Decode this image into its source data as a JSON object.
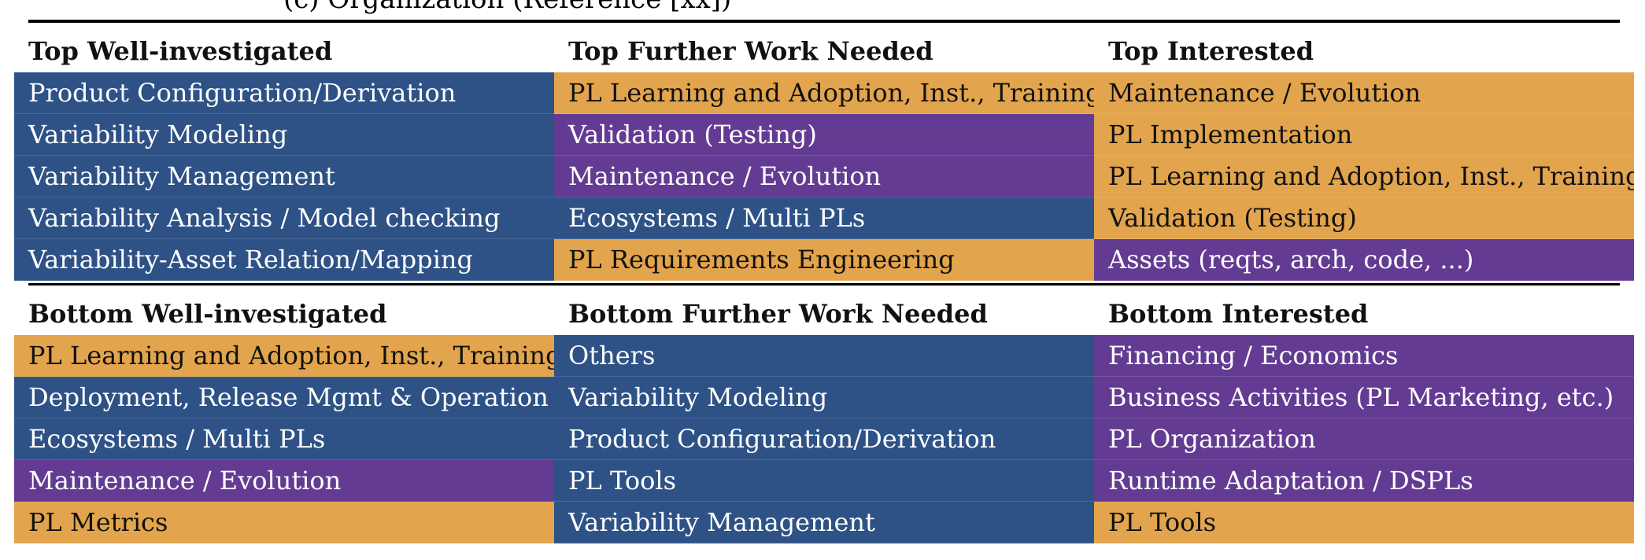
{
  "caption": "(c) Organization (Reference [xx])",
  "top": {
    "headers": [
      "Top Well-investigated",
      "Top Further Work Needed",
      "Top Interested"
    ],
    "rows": [
      [
        {
          "text": "Product Configuration/Derivation",
          "color": "blue"
        },
        {
          "text": "PL Learning and Adoption, Inst., Training",
          "color": "orange"
        },
        {
          "text": "Maintenance / Evolution",
          "color": "orange"
        }
      ],
      [
        {
          "text": "Variability Modeling",
          "color": "blue"
        },
        {
          "text": "Validation (Testing)",
          "color": "purple"
        },
        {
          "text": "PL Implementation",
          "color": "orange"
        }
      ],
      [
        {
          "text": "Variability Management",
          "color": "blue"
        },
        {
          "text": "Maintenance / Evolution",
          "color": "purple"
        },
        {
          "text": "PL Learning and Adoption, Inst., Training",
          "color": "orange"
        }
      ],
      [
        {
          "text": "Variability Analysis / Model checking",
          "color": "blue"
        },
        {
          "text": "Ecosystems / Multi PLs",
          "color": "blue"
        },
        {
          "text": "Validation (Testing)",
          "color": "orange"
        }
      ],
      [
        {
          "text": "Variability-Asset Relation/Mapping",
          "color": "blue"
        },
        {
          "text": "PL Requirements Engineering",
          "color": "orange"
        },
        {
          "text": "Assets (reqts, arch, code, ...)",
          "color": "purple"
        }
      ]
    ]
  },
  "bottom": {
    "headers": [
      "Bottom Well-investigated",
      "Bottom Further Work Needed",
      "Bottom Interested"
    ],
    "rows": [
      [
        {
          "text": "PL Learning and Adoption, Inst., Training",
          "color": "orange"
        },
        {
          "text": "Others",
          "color": "blue"
        },
        {
          "text": "Financing / Economics",
          "color": "purple"
        }
      ],
      [
        {
          "text": "Deployment, Release Mgmt & Operation",
          "color": "blue"
        },
        {
          "text": "Variability Modeling",
          "color": "blue"
        },
        {
          "text": "Business Activities (PL Marketing, etc.)",
          "color": "purple"
        }
      ],
      [
        {
          "text": "Ecosystems / Multi PLs",
          "color": "blue"
        },
        {
          "text": "Product Configuration/Derivation",
          "color": "blue"
        },
        {
          "text": "PL Organization",
          "color": "purple"
        }
      ],
      [
        {
          "text": "Maintenance / Evolution",
          "color": "purple"
        },
        {
          "text": "PL Tools",
          "color": "blue"
        },
        {
          "text": "Runtime Adaptation / DSPLs",
          "color": "purple"
        }
      ],
      [
        {
          "text": "PL Metrics",
          "color": "orange"
        },
        {
          "text": "Variability Management",
          "color": "blue"
        },
        {
          "text": "PL Tools",
          "color": "orange"
        }
      ]
    ]
  },
  "colors": {
    "blue": "#2e5286",
    "purple": "#643b93",
    "orange": "#e2a44c"
  }
}
